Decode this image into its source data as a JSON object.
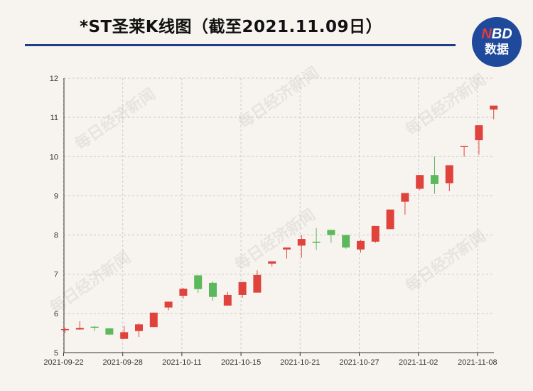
{
  "header": {
    "title": "*ST圣莱K线图（截至2021.11.09日）",
    "logo_top_n": "N",
    "logo_top_rest": "BD",
    "logo_bottom": "数据"
  },
  "watermark_text": "每日经济新闻",
  "colors": {
    "up": "#e0423c",
    "down": "#5cb85c",
    "title_rule": "#1f3c88",
    "logo_bg": "#1f4a9c",
    "grid": "#c9c9c9"
  },
  "chart_data": {
    "type": "candlestick",
    "title": "*ST圣莱K线图（截至2021.11.09日）",
    "ylim": [
      5,
      12
    ],
    "yticks": [
      5,
      6,
      7,
      8,
      9,
      10,
      11,
      12
    ],
    "xtick_labels": [
      "2021-09-22",
      "2021-09-28",
      "2021-10-11",
      "2021-10-15",
      "2021-10-21",
      "2021-10-27",
      "2021-11-02",
      "2021-11-08"
    ],
    "xtick_indices": [
      0,
      4,
      8,
      12,
      16,
      20,
      24,
      28
    ],
    "grid": true,
    "candles": [
      {
        "open": 5.58,
        "close": 5.6,
        "high": 5.64,
        "low": 5.5
      },
      {
        "open": 5.59,
        "close": 5.63,
        "high": 5.8,
        "low": 5.58
      },
      {
        "open": 5.66,
        "close": 5.64,
        "high": 5.68,
        "low": 5.55
      },
      {
        "open": 5.62,
        "close": 5.46,
        "high": 5.63,
        "low": 5.45
      },
      {
        "open": 5.35,
        "close": 5.52,
        "high": 5.68,
        "low": 5.35
      },
      {
        "open": 5.55,
        "close": 5.72,
        "high": 5.75,
        "low": 5.4
      },
      {
        "open": 5.65,
        "close": 6.02,
        "high": 6.02,
        "low": 5.65
      },
      {
        "open": 6.15,
        "close": 6.3,
        "high": 6.3,
        "low": 6.08
      },
      {
        "open": 6.45,
        "close": 6.63,
        "high": 6.65,
        "low": 6.38
      },
      {
        "open": 6.97,
        "close": 6.62,
        "high": 6.97,
        "low": 6.52
      },
      {
        "open": 6.78,
        "close": 6.42,
        "high": 6.82,
        "low": 6.32
      },
      {
        "open": 6.2,
        "close": 6.47,
        "high": 6.55,
        "low": 6.2
      },
      {
        "open": 6.47,
        "close": 6.8,
        "high": 6.8,
        "low": 6.4
      },
      {
        "open": 6.53,
        "close": 6.98,
        "high": 7.1,
        "low": 6.53
      },
      {
        "open": 7.27,
        "close": 7.33,
        "high": 7.33,
        "low": 7.2
      },
      {
        "open": 7.63,
        "close": 7.68,
        "high": 7.68,
        "low": 7.4
      },
      {
        "open": 7.73,
        "close": 7.9,
        "high": 8.0,
        "low": 7.42
      },
      {
        "open": 7.83,
        "close": 7.8,
        "high": 8.18,
        "low": 7.62
      },
      {
        "open": 8.13,
        "close": 8.0,
        "high": 8.13,
        "low": 7.8
      },
      {
        "open": 8.0,
        "close": 7.68,
        "high": 8.0,
        "low": 7.65
      },
      {
        "open": 7.63,
        "close": 7.85,
        "high": 7.88,
        "low": 7.55
      },
      {
        "open": 7.83,
        "close": 8.23,
        "high": 8.23,
        "low": 7.8
      },
      {
        "open": 8.15,
        "close": 8.65,
        "high": 8.65,
        "low": 8.15
      },
      {
        "open": 8.85,
        "close": 9.07,
        "high": 9.07,
        "low": 8.52
      },
      {
        "open": 9.18,
        "close": 9.53,
        "high": 9.53,
        "low": 9.15
      },
      {
        "open": 9.53,
        "close": 9.3,
        "high": 10.0,
        "low": 9.05
      },
      {
        "open": 9.32,
        "close": 9.78,
        "high": 9.78,
        "low": 9.12
      },
      {
        "open": 10.27,
        "close": 10.27,
        "high": 10.27,
        "low": 10.0
      },
      {
        "open": 10.42,
        "close": 10.8,
        "high": 10.8,
        "low": 10.05
      },
      {
        "open": 11.2,
        "close": 11.3,
        "high": 11.3,
        "low": 10.95
      }
    ]
  }
}
